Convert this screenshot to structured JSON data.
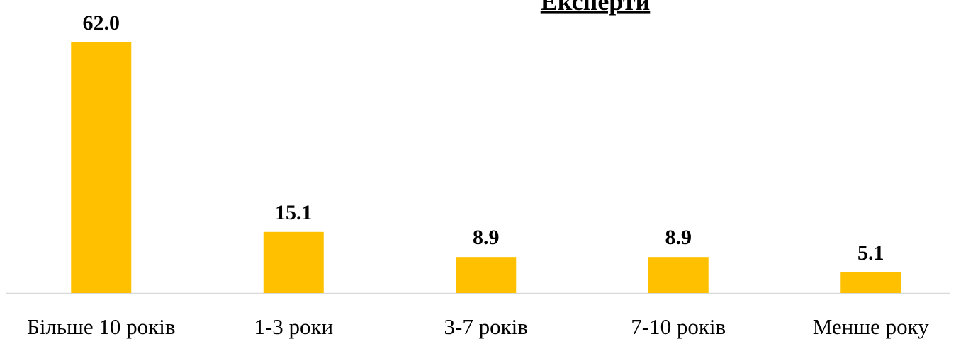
{
  "chart_data": {
    "type": "bar",
    "title": "Експерти",
    "categories": [
      "Більше 10 років",
      "1-3 роки",
      "3-7 років",
      "7-10 років",
      "Менше року"
    ],
    "values": [
      62.0,
      15.1,
      8.9,
      8.9,
      5.1
    ],
    "value_labels": [
      "62.0",
      "15.1",
      "8.9",
      "8.9",
      "5.1"
    ],
    "color": "#ffc000"
  }
}
